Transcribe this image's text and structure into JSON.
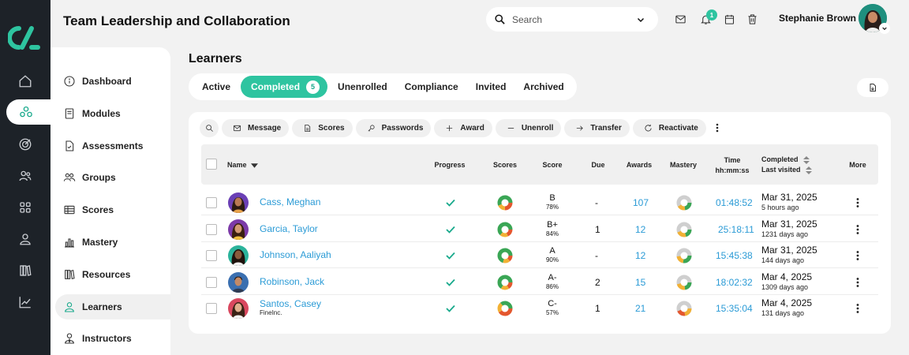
{
  "header": {
    "course_title": "Team Leadership and Collaboration",
    "search_placeholder": "Search",
    "notification_count": "1",
    "user_name": "Stephanie Brown"
  },
  "sidebar": {
    "items": [
      {
        "label": "Dashboard",
        "icon": "info-icon"
      },
      {
        "label": "Modules",
        "icon": "book-icon"
      },
      {
        "label": "Assessments",
        "icon": "file-check-icon"
      },
      {
        "label": "Groups",
        "icon": "users-icon"
      },
      {
        "label": "Scores",
        "icon": "table-icon"
      },
      {
        "label": "Mastery",
        "icon": "bar-chart-icon"
      },
      {
        "label": "Resources",
        "icon": "library-icon"
      },
      {
        "label": "Learners",
        "icon": "user-icon",
        "active": true
      },
      {
        "label": "Instructors",
        "icon": "user-tie-icon"
      }
    ]
  },
  "main": {
    "page_title": "Learners",
    "tabs": [
      {
        "label": "Active"
      },
      {
        "label": "Completed",
        "count": "5",
        "active": true
      },
      {
        "label": "Unenrolled"
      },
      {
        "label": "Compliance"
      },
      {
        "label": "Invited"
      },
      {
        "label": "Archived"
      }
    ],
    "toolbar": {
      "message": "Message",
      "scores": "Scores",
      "passwords": "Passwords",
      "award": "Award",
      "unenroll": "Unenroll",
      "transfer": "Transfer",
      "reactivate": "Reactivate"
    },
    "table": {
      "headers": {
        "name": "Name",
        "progress": "Progress",
        "scores": "Scores",
        "score": "Score",
        "due": "Due",
        "awards": "Awards",
        "mastery": "Mastery",
        "time": "Time",
        "time_format": "hh:mm:ss",
        "completed": "Completed",
        "last_visited": "Last visited",
        "more": "More"
      },
      "rows": [
        {
          "name": "Cass, Meghan",
          "org": "",
          "grade": "B",
          "pct": "78%",
          "due": "-",
          "awards": "107",
          "time": "01:48:52",
          "completed": "Mar 31, 2025",
          "last_visited": "5 hours ago",
          "avatar_color": "#6a3fb5"
        },
        {
          "name": "Garcia, Taylor",
          "org": "",
          "grade": "B+",
          "pct": "84%",
          "due": "1",
          "awards": "12",
          "time": "25:18:11",
          "completed": "Mar 31, 2025",
          "last_visited": "1231 days ago",
          "avatar_color": "#7c3aa8"
        },
        {
          "name": "Johnson, Aaliyah",
          "org": "",
          "grade": "A",
          "pct": "90%",
          "due": "-",
          "awards": "12",
          "time": "15:45:38",
          "completed": "Mar 31, 2025",
          "last_visited": "144 days ago",
          "avatar_color": "#2bb39b"
        },
        {
          "name": "Robinson, Jack",
          "org": "",
          "grade": "A-",
          "pct": "86%",
          "due": "2",
          "awards": "15",
          "time": "18:02:32",
          "completed": "Mar 4, 2025",
          "last_visited": "1309 days ago",
          "avatar_color": "#3a6fb0"
        },
        {
          "name": "Santos, Casey",
          "org": "FineInc.",
          "grade": "C-",
          "pct": "57%",
          "due": "1",
          "awards": "21",
          "time": "15:35:04",
          "completed": "Mar 4, 2025",
          "last_visited": "131 days ago",
          "avatar_color": "#d9485f"
        }
      ]
    }
  },
  "colors": {
    "accent": "#2ec4a0",
    "link": "#2b9bd6",
    "rail_bg": "#1d2228"
  }
}
